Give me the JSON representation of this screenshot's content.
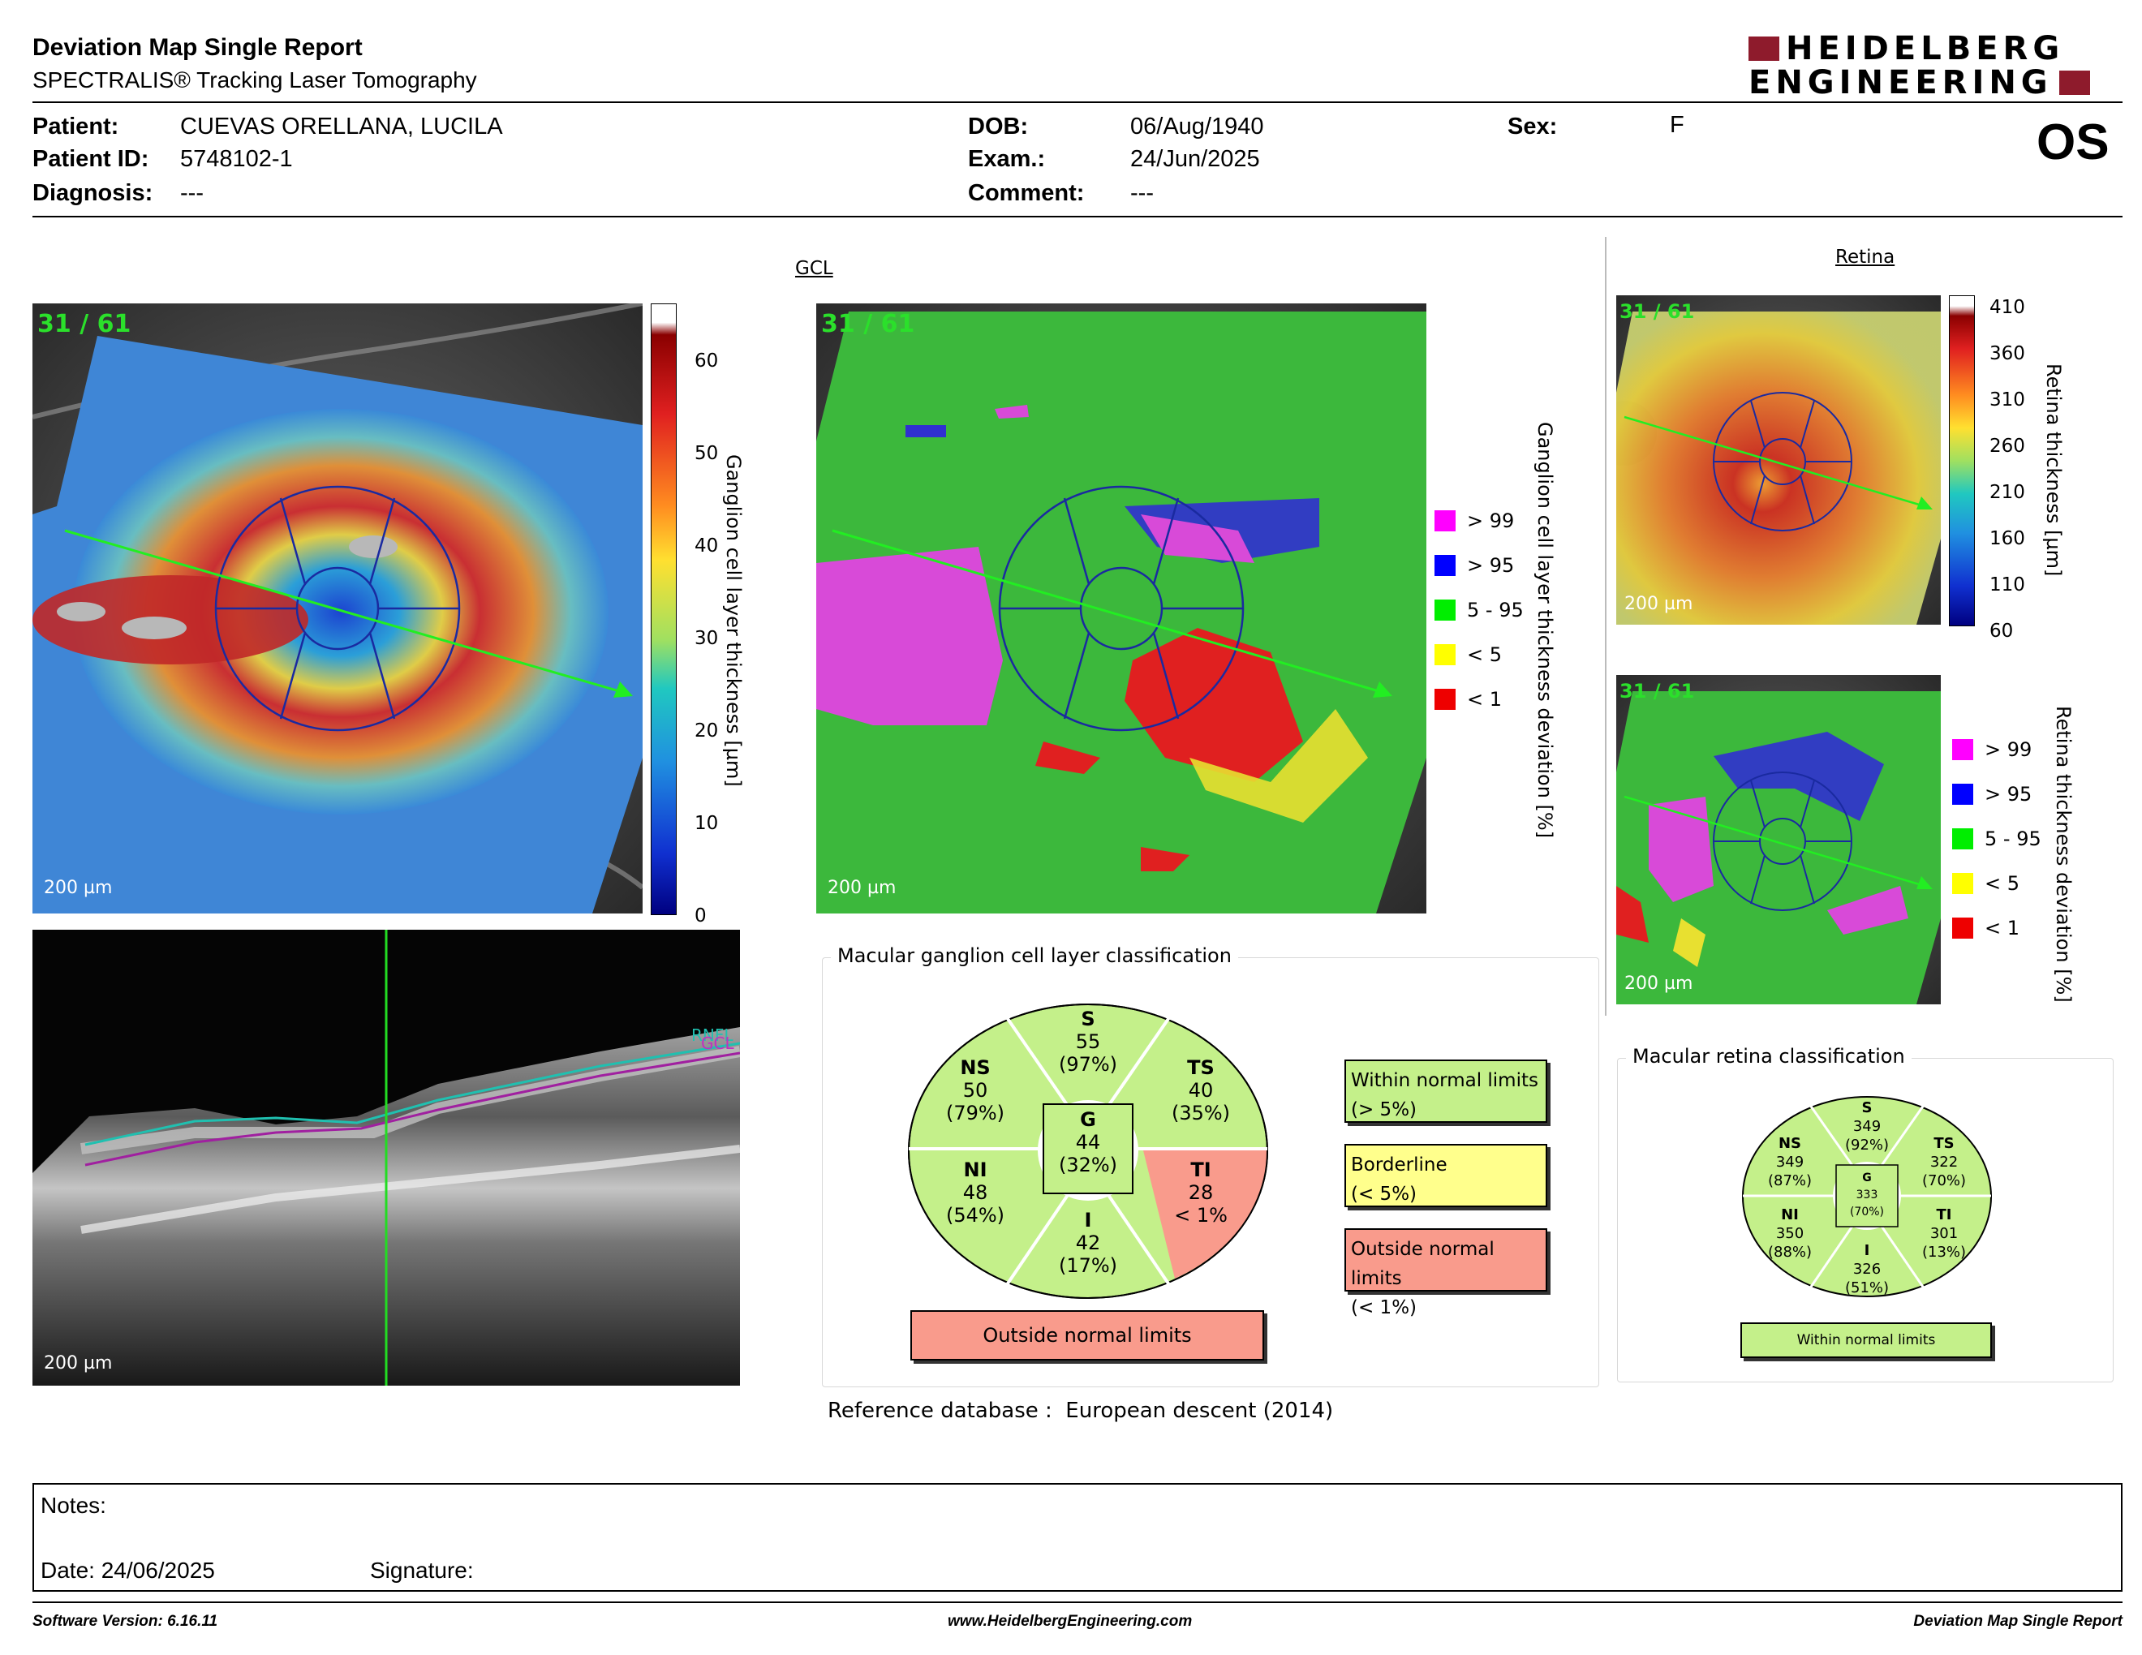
{
  "header": {
    "title": "Deviation Map Single Report",
    "subtitle": "SPECTRALIS® Tracking Laser Tomography",
    "logo_line1": "HEIDELBERG",
    "logo_line2": "ENGINEERING",
    "eye": "OS"
  },
  "patient": {
    "patient_label": "Patient:",
    "patient_value": "CUEVAS ORELLANA, LUCILA",
    "id_label": "Patient ID:",
    "id_value": "5748102-1",
    "diagnosis_label": "Diagnosis:",
    "diagnosis_value": "---",
    "dob_label": "DOB:",
    "dob_value": "06/Aug/1940",
    "exam_label": "Exam.:",
    "exam_value": "24/Jun/2025",
    "comment_label": "Comment:",
    "comment_value": "---",
    "sex_label": "Sex:",
    "sex_value": "F"
  },
  "gcl_section_title": "GCL",
  "retina_section_title": "Retina",
  "frame_label": "31 / 61",
  "scale_label": "200 µm",
  "gcl_thickness": {
    "axis_label": "Ganglion cell layer thickness [µm]",
    "ticks": [
      "60",
      "50",
      "40",
      "30",
      "20",
      "10",
      "0"
    ]
  },
  "gcl_deviation": {
    "axis_label": "Ganglion cell layer thickness deviation [%]",
    "legend": [
      {
        "label": "> 99",
        "color": "#ff00ff"
      },
      {
        "label": "> 95",
        "color": "#0000ff"
      },
      {
        "label": "5 - 95",
        "color": "#00ee00"
      },
      {
        "label": "< 5",
        "color": "#ffff00"
      },
      {
        "label": "< 1",
        "color": "#ee0000"
      }
    ]
  },
  "retina_thickness": {
    "axis_label": "Retina thickness [µm]",
    "ticks": [
      "410",
      "360",
      "310",
      "260",
      "210",
      "160",
      "110",
      "60"
    ]
  },
  "retina_deviation": {
    "axis_label": "Retina thickness deviation [%]",
    "legend": [
      {
        "label": "> 99",
        "color": "#ff00ff"
      },
      {
        "label": "> 95",
        "color": "#0000ff"
      },
      {
        "label": "5 - 95",
        "color": "#00ee00"
      },
      {
        "label": "< 5",
        "color": "#ffff00"
      },
      {
        "label": "< 1",
        "color": "#ee0000"
      }
    ]
  },
  "oct_scan": {
    "layer_rnfl": "RNFL",
    "layer_gcl": "GCL"
  },
  "gcl_classification": {
    "title": "Macular ganglion cell layer classification",
    "S": {
      "name": "S",
      "value": "55",
      "pct": "(97%)"
    },
    "NS": {
      "name": "NS",
      "value": "50",
      "pct": "(79%)"
    },
    "TS": {
      "name": "TS",
      "value": "40",
      "pct": "(35%)"
    },
    "G": {
      "name": "G",
      "value": "44",
      "pct": "(32%)"
    },
    "NI": {
      "name": "NI",
      "value": "48",
      "pct": "(54%)"
    },
    "TI": {
      "name": "TI",
      "value": "28",
      "pct": "< 1%"
    },
    "I": {
      "name": "I",
      "value": "42",
      "pct": "(17%)"
    },
    "result": "Outside normal limits",
    "colors": {
      "normal": "#c4f08a",
      "outside": "#f99b8c",
      "borderline": "#ffff8c"
    },
    "key": [
      {
        "line1": "Within normal limits",
        "line2": "(> 5%)"
      },
      {
        "line1": "Borderline",
        "line2": "(< 5%)"
      },
      {
        "line1": "Outside normal limits",
        "line2": "(< 1%)"
      }
    ]
  },
  "retina_classification": {
    "title": "Macular retina classification",
    "S": {
      "name": "S",
      "value": "349",
      "pct": "(92%)"
    },
    "NS": {
      "name": "NS",
      "value": "349",
      "pct": "(87%)"
    },
    "TS": {
      "name": "TS",
      "value": "322",
      "pct": "(70%)"
    },
    "G": {
      "name": "G",
      "value": "333",
      "pct": "(70%)"
    },
    "NI": {
      "name": "NI",
      "value": "350",
      "pct": "(88%)"
    },
    "TI": {
      "name": "TI",
      "value": "301",
      "pct": "(13%)"
    },
    "I": {
      "name": "I",
      "value": "326",
      "pct": "(51%)"
    },
    "result": "Within normal limits"
  },
  "reference": {
    "label": "Reference database",
    "value": "European descent (2014)"
  },
  "notes": {
    "notes_label": "Notes:",
    "date_label": "Date: 24/06/2025",
    "signature_label": "Signature:"
  },
  "footer": {
    "software": "Software Version: 6.16.11",
    "website": "www.HeidelbergEngineering.com",
    "report": "Deviation Map Single Report"
  }
}
